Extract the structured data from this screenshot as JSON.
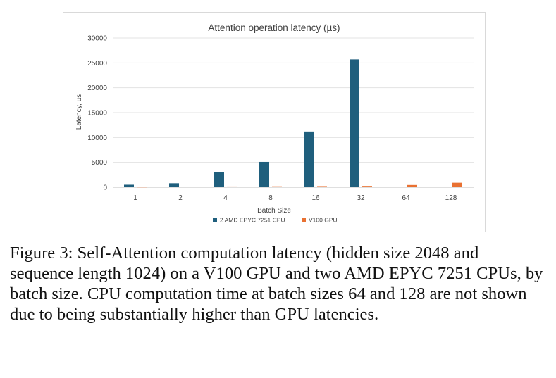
{
  "chart_data": {
    "type": "bar",
    "title": "Attention operation latency (µs)",
    "xlabel": "Batch Size",
    "ylabel": "Latency, µs",
    "categories": [
      "1",
      "2",
      "4",
      "8",
      "16",
      "32",
      "64",
      "128"
    ],
    "ylim": [
      0,
      30000
    ],
    "yticks": [
      "0",
      "5000",
      "10000",
      "15000",
      "20000",
      "25000",
      "30000"
    ],
    "grid": true,
    "legend_position": "bottom",
    "series": [
      {
        "name": "2 AMD EPYC 7251 CPU",
        "color": "#1f5f7d",
        "values": [
          500,
          800,
          3000,
          5100,
          11200,
          25700,
          null,
          null
        ]
      },
      {
        "name": "V100 GPU",
        "color": "#e97132",
        "values": [
          80,
          120,
          150,
          180,
          220,
          260,
          450,
          900
        ]
      }
    ]
  },
  "caption": "Figure 3: Self-Attention computation latency (hidden size 2048 and sequence length 1024) on a V100 GPU and two AMD EPYC 7251 CPUs, by batch size. CPU computation time at batch sizes 64 and 128 are not shown due to being substantially higher than GPU latencies."
}
